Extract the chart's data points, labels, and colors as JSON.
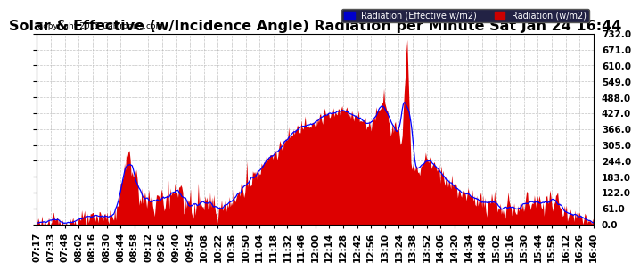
{
  "title": "Solar & Effective (w/Incidence Angle) Radiation per Minute Sat Jan 24 16:44",
  "copyright": "Copyright 2015 Cartronics.com",
  "ylim": [
    0,
    732
  ],
  "yticks": [
    0,
    61,
    122,
    183,
    244,
    305,
    366,
    427,
    488,
    549,
    610,
    671,
    732
  ],
  "legend_label1": "Radiation (Effective w/m2)",
  "legend_label2": "Radiation (w/m2)",
  "fill_color": "#dd0000",
  "line_color": "#0000ff",
  "bg_color": "#ffffff",
  "grid_color": "#aaaaaa",
  "title_fontsize": 11.5,
  "tick_fontsize": 7.5,
  "xtick_labels": [
    "07:17",
    "07:33",
    "07:48",
    "08:02",
    "08:16",
    "08:30",
    "08:44",
    "08:58",
    "09:12",
    "09:26",
    "09:40",
    "09:54",
    "10:08",
    "10:22",
    "10:36",
    "10:50",
    "11:04",
    "11:18",
    "11:32",
    "11:46",
    "12:00",
    "12:14",
    "12:28",
    "12:42",
    "12:56",
    "13:10",
    "13:24",
    "13:38",
    "13:52",
    "14:06",
    "14:20",
    "14:34",
    "14:48",
    "15:02",
    "15:16",
    "15:30",
    "15:44",
    "15:58",
    "16:12",
    "16:26",
    "16:40"
  ]
}
